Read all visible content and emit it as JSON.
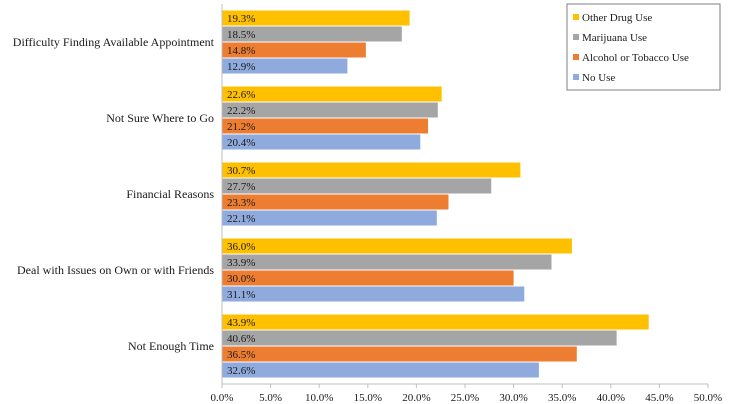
{
  "chart_data": {
    "type": "bar",
    "orientation": "horizontal",
    "title": "",
    "xlabel": "",
    "ylabel": "",
    "xlim": [
      0,
      50
    ],
    "x_ticks": [
      "0.0%",
      "5.0%",
      "10.0%",
      "15.0%",
      "20.0%",
      "25.0%",
      "30.0%",
      "35.0%",
      "40.0%",
      "45.0%",
      "50.0%"
    ],
    "grid": false,
    "legend_position": "top-right",
    "categories": [
      "Difficulty Finding Available Appointment",
      "Not Sure Where to Go",
      "Financial Reasons",
      "Deal with Issues on Own or with Friends",
      "Not Enough Time"
    ],
    "series": [
      {
        "name": "Other Drug Use",
        "color": "#FFC000",
        "values": [
          19.3,
          22.6,
          30.7,
          36.0,
          43.9
        ],
        "labels": [
          "19.3%",
          "22.6%",
          "30.7%",
          "36.0%",
          "43.9%"
        ]
      },
      {
        "name": "Marijuana Use",
        "color": "#A5A5A5",
        "values": [
          18.5,
          22.2,
          27.7,
          33.9,
          40.6
        ],
        "labels": [
          "18.5%",
          "22.2%",
          "27.7%",
          "33.9%",
          "40.6%"
        ]
      },
      {
        "name": "Alcohol or Tobacco Use",
        "color": "#ED7D31",
        "values": [
          14.8,
          21.2,
          23.3,
          30.0,
          36.5
        ],
        "labels": [
          "14.8%",
          "21.2%",
          "23.3%",
          "30.0%",
          "36.5%"
        ]
      },
      {
        "name": "No Use",
        "color": "#8FAADC",
        "values": [
          12.9,
          20.4,
          22.1,
          31.1,
          32.6
        ],
        "labels": [
          "12.9%",
          "20.4%",
          "22.1%",
          "31.1%",
          "32.6%"
        ]
      }
    ]
  }
}
